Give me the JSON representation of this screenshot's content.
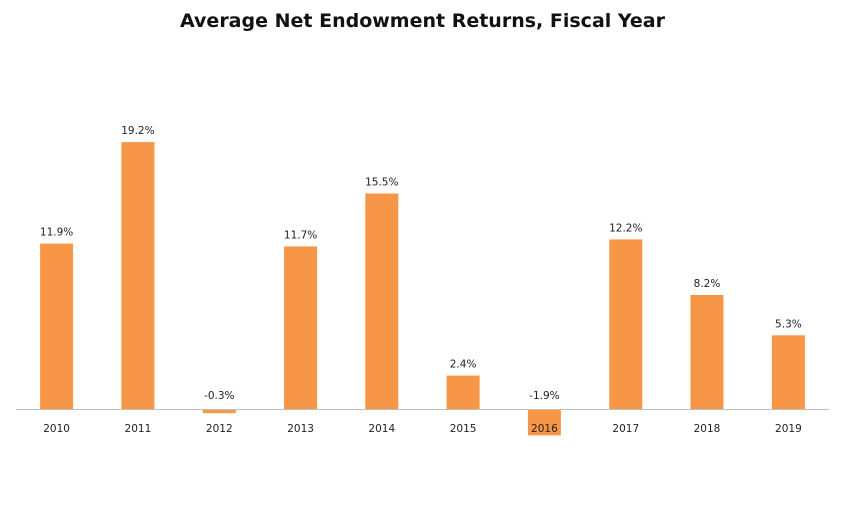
{
  "chart_data": {
    "type": "bar",
    "title": "Average Net Endowment Returns, Fiscal Year",
    "xlabel": "",
    "ylabel": "",
    "categories": [
      "2010",
      "2011",
      "2012",
      "2013",
      "2014",
      "2015",
      "2016",
      "2017",
      "2018",
      "2019"
    ],
    "values": [
      11.9,
      19.2,
      -0.3,
      11.7,
      15.5,
      2.4,
      -1.9,
      12.2,
      8.2,
      5.3
    ],
    "data_labels": [
      "11.9%",
      "19.2%",
      "-0.3%",
      "11.7%",
      "15.5%",
      "2.4%",
      "-1.9%",
      "12.2%",
      "8.2%",
      "5.3%"
    ],
    "ylim": [
      -2,
      20
    ],
    "grid": false,
    "legend": "none",
    "bar_color": "#F79646"
  }
}
